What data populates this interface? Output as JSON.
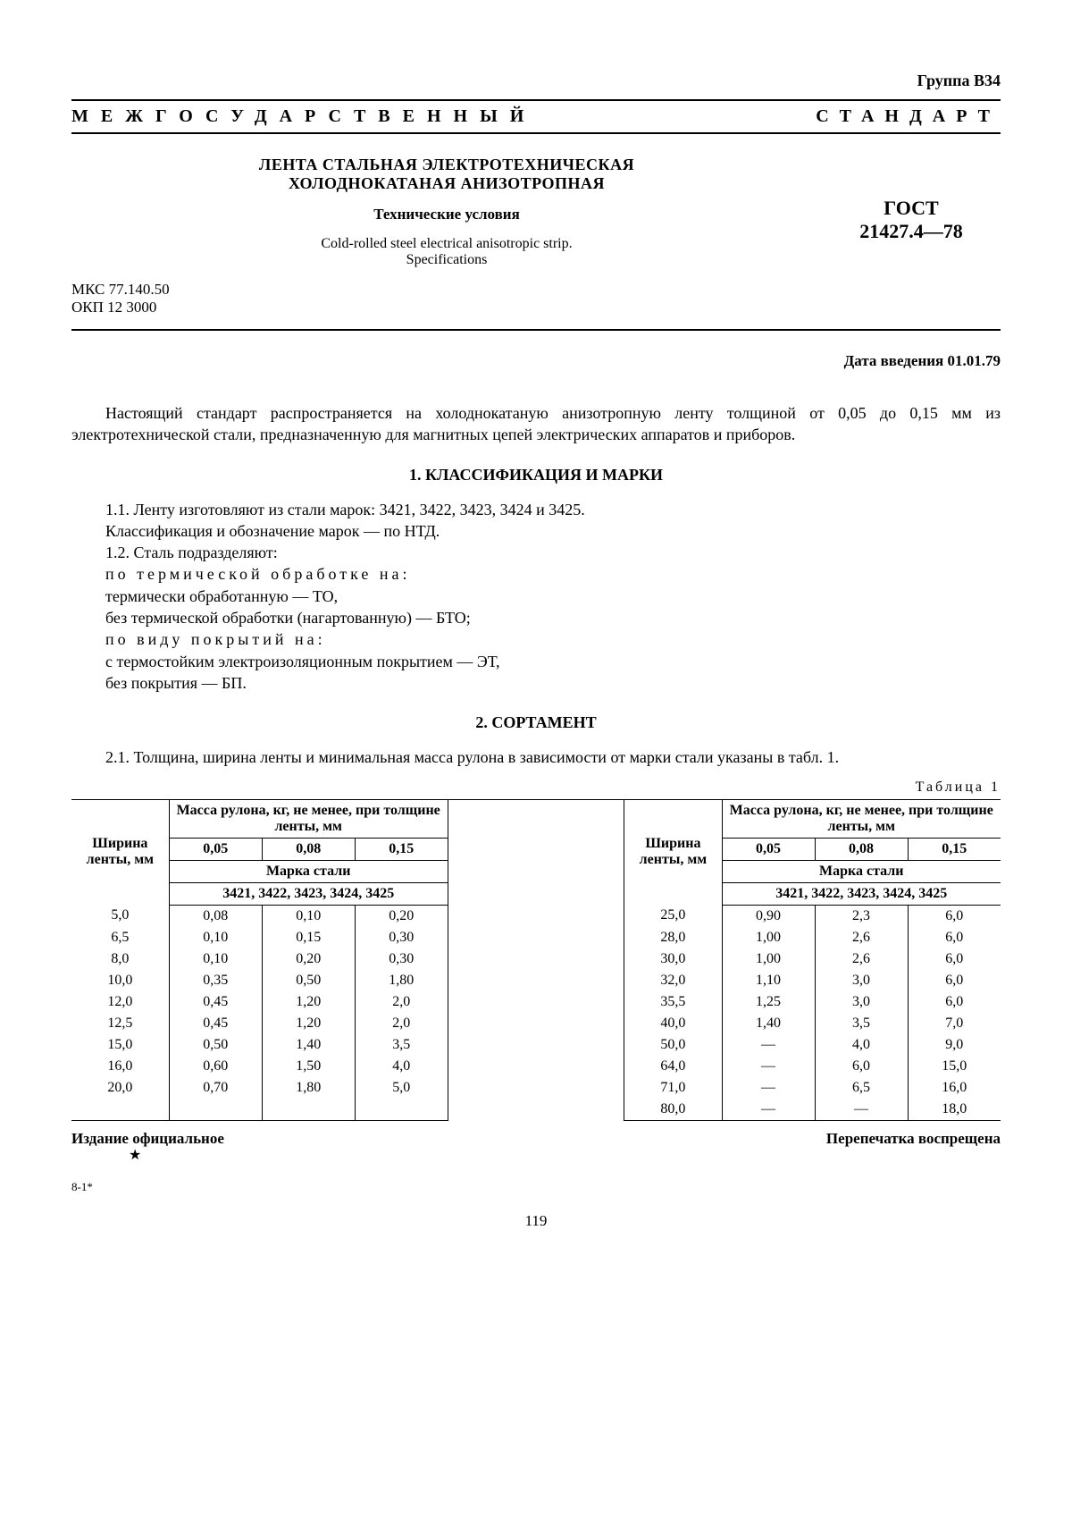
{
  "group": "Группа В34",
  "banner_left": "МЕЖГОСУДАРСТВЕННЫЙ",
  "banner_right": "СТАНДАРТ",
  "title_ru_1": "ЛЕНТА СТАЛЬНАЯ ЭЛЕКТРОТЕХНИЧЕСКАЯ",
  "title_ru_2": "ХОЛОДНОКАТАНАЯ АНИЗОТРОПНАЯ",
  "subtitle_ru": "Технические условия",
  "title_en_1": "Cold-rolled steel electrical anisotropic strip.",
  "title_en_2": "Specifications",
  "code_mks": "МКС 77.140.50",
  "code_okp": "ОКП 12 3000",
  "gost_label": "ГОСТ",
  "gost_number": "21427.4—78",
  "intro_date": "Дата введения 01.01.79",
  "para_intro": "Настоящий стандарт распространяется на холоднокатаную анизотропную ленту толщиной от 0,05 до 0,15 мм из электротехнической стали, предназначенную для магнитных цепей электрических аппаратов и приборов.",
  "section1_h": "1. КЛАССИФИКАЦИЯ И МАРКИ",
  "s1_lines": [
    "1.1. Ленту изготовляют из стали марок: 3421, 3422, 3423, 3424 и 3425.",
    "Классификация и обозначение марок — по НТД.",
    "1.2. Сталь подразделяют:"
  ],
  "s1_sp1": "по термической обработке на:",
  "s1_l4": "термически обработанную — ТО,",
  "s1_l5": "без термической обработки (нагартованную) — БТО;",
  "s1_sp2": "по виду покрытий на:",
  "s1_l6": "с термостойким электроизоляционным покрытием — ЭТ,",
  "s1_l7": "без покрытия — БП.",
  "section2_h": "2. СОРТАМЕНТ",
  "s2_para": "2.1. Толщина, ширина ленты и минимальная масса рулона в зависимости от марки стали указаны в табл. 1.",
  "table_caption": "Таблица 1",
  "table": {
    "col_width_hdr": "Ширина ленты, мм",
    "mass_hdr": "Масса рулона, кг, не менее, при толщине ленты, мм",
    "thickness_cols": [
      "0,05",
      "0,08",
      "0,15"
    ],
    "grade_hdr": "Марка стали",
    "grade_list": "3421, 3422, 3423, 3424, 3425",
    "left_rows": [
      [
        "5,0",
        "0,08",
        "0,10",
        "0,20"
      ],
      [
        "6,5",
        "0,10",
        "0,15",
        "0,30"
      ],
      [
        "8,0",
        "0,10",
        "0,20",
        "0,30"
      ],
      [
        "10,0",
        "0,35",
        "0,50",
        "1,80"
      ],
      [
        "12,0",
        "0,45",
        "1,20",
        "2,0"
      ],
      [
        "12,5",
        "0,45",
        "1,20",
        "2,0"
      ],
      [
        "15,0",
        "0,50",
        "1,40",
        "3,5"
      ],
      [
        "16,0",
        "0,60",
        "1,50",
        "4,0"
      ],
      [
        "20,0",
        "0,70",
        "1,80",
        "5,0"
      ]
    ],
    "right_rows": [
      [
        "25,0",
        "0,90",
        "2,3",
        "6,0"
      ],
      [
        "28,0",
        "1,00",
        "2,6",
        "6,0"
      ],
      [
        "30,0",
        "1,00",
        "2,6",
        "6,0"
      ],
      [
        "32,0",
        "1,10",
        "3,0",
        "6,0"
      ],
      [
        "35,5",
        "1,25",
        "3,0",
        "6,0"
      ],
      [
        "40,0",
        "1,40",
        "3,5",
        "7,0"
      ],
      [
        "50,0",
        "—",
        "4,0",
        "9,0"
      ],
      [
        "64,0",
        "—",
        "6,0",
        "15,0"
      ],
      [
        "71,0",
        "—",
        "6,5",
        "16,0"
      ],
      [
        "80,0",
        "—",
        "—",
        "18,0"
      ]
    ]
  },
  "footer_left": "Издание официальное",
  "footer_right": "Перепечатка воспрещена",
  "star": "★",
  "sig": "8-1*",
  "page_number": "119"
}
